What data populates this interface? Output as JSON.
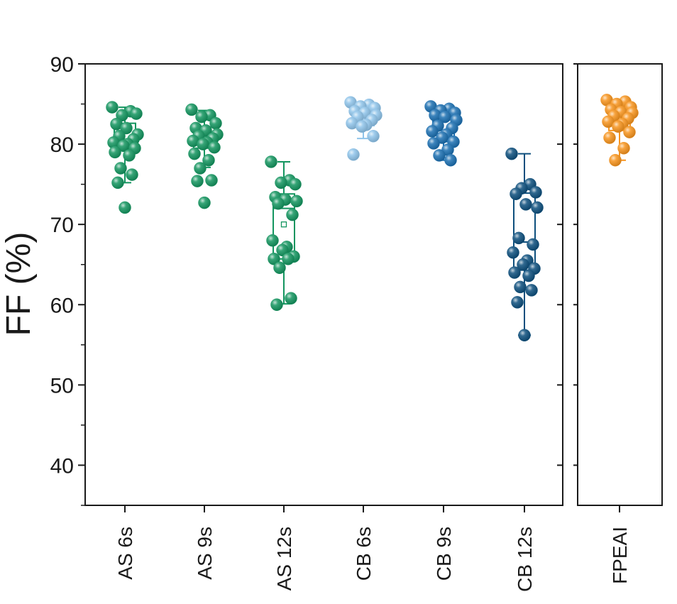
{
  "chart_data": {
    "type": "box",
    "ylabel": "FF (%)",
    "yticks": [
      40,
      50,
      60,
      70,
      80,
      90
    ],
    "ylim": [
      35,
      90
    ],
    "grid": false,
    "main_panel": {
      "categories": [
        "AS 6s",
        "AS 9s",
        "AS 12s",
        "CB 6s",
        "CB 9s",
        "CB 12s"
      ],
      "series": [
        {
          "category": "AS 6s",
          "color": "#13955f",
          "box": {
            "min": 75.2,
            "q1": 79.3,
            "median": 80.3,
            "q3": 82.6,
            "max": 84.6,
            "mean": null
          },
          "points": [
            84.6,
            84.1,
            83.6,
            83.8,
            82.5,
            82.0,
            81.2,
            81.0,
            80.6,
            80.2,
            80.0,
            79.8,
            79.5,
            79.0,
            78.6,
            77.0,
            76.2,
            75.2,
            72.1
          ]
        },
        {
          "category": "AS 9s",
          "color": "#13955f",
          "box": {
            "min": 77.1,
            "q1": 79.5,
            "median": 80.3,
            "q3": 82.1,
            "max": 84.2,
            "mean": null
          },
          "points": [
            84.3,
            83.6,
            83.4,
            82.6,
            82.0,
            81.7,
            81.2,
            81.0,
            80.7,
            80.4,
            80.2,
            80.0,
            79.6,
            78.8,
            78.0,
            77.0,
            75.5,
            75.4,
            72.7
          ]
        },
        {
          "category": "AS 12s",
          "color": "#13955f",
          "box": {
            "min": 60.1,
            "q1": 65.7,
            "median": 72.0,
            "q3": 73.8,
            "max": 77.8,
            "mean": 70.0
          },
          "points": [
            77.8,
            75.5,
            75.2,
            75.0,
            73.4,
            73.1,
            72.9,
            72.6,
            71.2,
            68.0,
            67.2,
            66.8,
            66.0,
            65.7,
            65.7,
            64.6,
            60.8,
            60.0
          ]
        },
        {
          "category": "CB 6s",
          "color": "#8fc4ea",
          "box": {
            "min": 80.7,
            "q1": 82.3,
            "median": 83.8,
            "q3": 84.9,
            "max": 85.2,
            "mean": null
          },
          "points": [
            85.2,
            84.9,
            84.7,
            84.5,
            84.1,
            83.9,
            83.6,
            83.4,
            83.0,
            82.6,
            82.4,
            82.2,
            81.0,
            78.7
          ]
        },
        {
          "category": "CB 9s",
          "color": "#1b6fb1",
          "box": {
            "min": 78.0,
            "q1": 80.3,
            "median": 81.7,
            "q3": 83.9,
            "max": 84.7,
            "mean": null
          },
          "points": [
            84.7,
            84.4,
            84.2,
            83.9,
            83.6,
            83.4,
            83.0,
            82.3,
            82.0,
            81.6,
            81.2,
            80.8,
            80.3,
            80.1,
            79.3,
            78.6,
            78.0
          ]
        },
        {
          "category": "CB 12s",
          "color": "#0d4f7d",
          "box": {
            "min": 56.2,
            "q1": 64.3,
            "median": 67.8,
            "q3": 73.9,
            "max": 78.8,
            "mean": null
          },
          "points": [
            78.8,
            75.0,
            74.5,
            74.0,
            73.8,
            72.5,
            72.1,
            68.3,
            67.5,
            66.5,
            65.5,
            65.0,
            64.5,
            64.0,
            63.6,
            62.2,
            61.8,
            60.3,
            56.2
          ]
        }
      ]
    },
    "side_panel": {
      "categories": [
        "FPEAI"
      ],
      "series": [
        {
          "category": "FPEAI",
          "color": "#f7941d",
          "box": {
            "min": 78.0,
            "q1": 81.7,
            "median": 83.0,
            "q3": 84.8,
            "max": 85.5,
            "mean": null
          },
          "points": [
            85.5,
            85.3,
            85.0,
            84.6,
            84.3,
            84.0,
            83.9,
            83.5,
            83.2,
            82.8,
            82.5,
            82.2,
            81.5,
            80.8,
            79.5,
            78.0
          ]
        }
      ]
    }
  }
}
